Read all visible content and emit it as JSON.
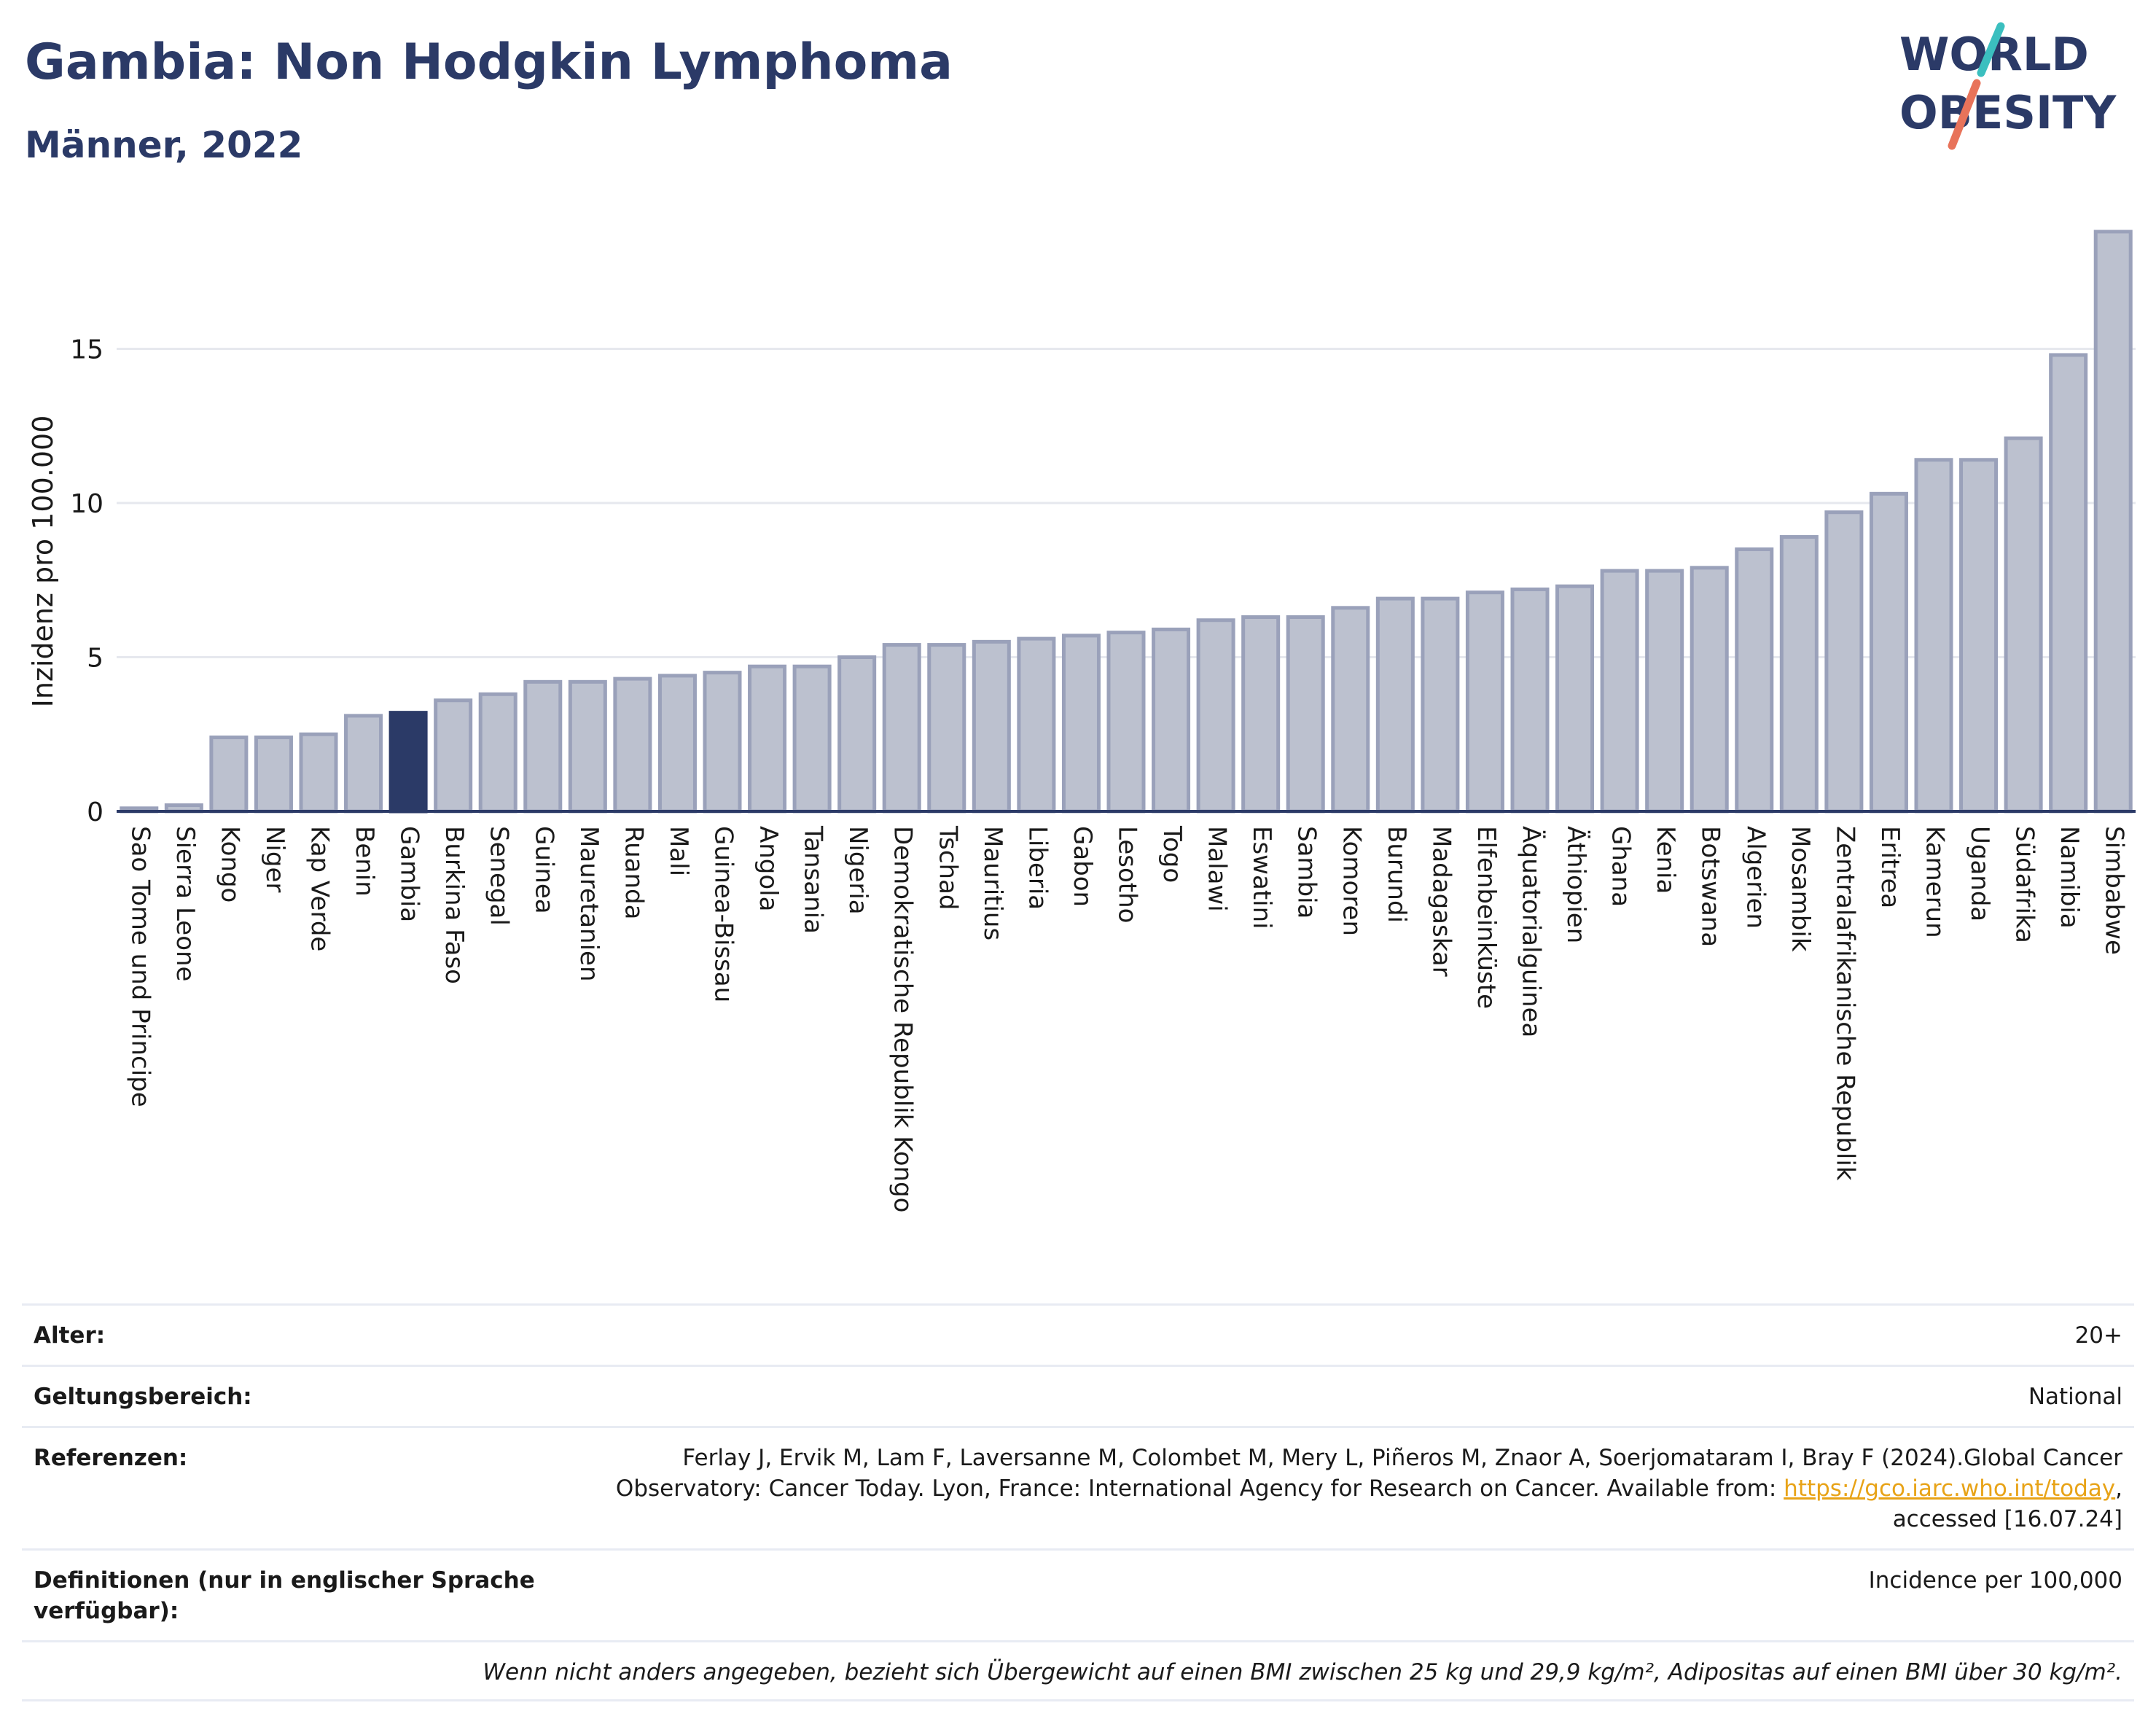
{
  "header": {
    "title": "Gambia: Non Hodgkin Lymphoma",
    "subtitle": "Männer, 2022"
  },
  "logo": {
    "line1": "WORLD",
    "line2": "OBESITY",
    "colors": {
      "text": "#2b3a67",
      "teal": "#3bbfbf",
      "coral": "#e8735a"
    }
  },
  "chart_data": {
    "type": "bar",
    "ylabel": "Inzidenz pro 100.000",
    "xlabel": "",
    "ylim": [
      0,
      19
    ],
    "yticks": [
      0,
      5,
      10,
      15
    ],
    "grid": true,
    "highlight": "Gambia",
    "colors": {
      "bar": "#bcc1cf",
      "bar_edge": "#9aa1ba",
      "highlight": "#2b3a67",
      "grid": "#e6e8ee",
      "axis": "#2b3a67"
    },
    "categories": [
      "Sao Tome und Principe",
      "Sierra Leone",
      "Kongo",
      "Niger",
      "Kap Verde",
      "Benin",
      "Gambia",
      "Burkina Faso",
      "Senegal",
      "Guinea",
      "Mauretanien",
      "Ruanda",
      "Mali",
      "Guinea-Bissau",
      "Angola",
      "Tansania",
      "Nigeria",
      "Demokratische Republik Kongo",
      "Tschad",
      "Mauritius",
      "Liberia",
      "Gabon",
      "Lesotho",
      "Togo",
      "Malawi",
      "Eswatini",
      "Sambia",
      "Komoren",
      "Burundi",
      "Madagaskar",
      "Elfenbeinküste",
      "Äquatorialguinea",
      "Äthiopien",
      "Ghana",
      "Kenia",
      "Botswana",
      "Algerien",
      "Mosambik",
      "Zentralafrikanische Republik",
      "Eritrea",
      "Kamerun",
      "Uganda",
      "Südafrika",
      "Namibia",
      "Simbabwe"
    ],
    "values": [
      0.1,
      0.2,
      2.4,
      2.4,
      2.5,
      3.1,
      3.2,
      3.6,
      3.8,
      4.2,
      4.2,
      4.3,
      4.4,
      4.5,
      4.7,
      4.7,
      5.0,
      5.4,
      5.4,
      5.5,
      5.6,
      5.7,
      5.8,
      5.9,
      6.2,
      6.3,
      6.3,
      6.6,
      6.9,
      6.9,
      7.1,
      7.2,
      7.3,
      7.8,
      7.8,
      7.9,
      8.5,
      8.9,
      9.7,
      10.3,
      11.4,
      11.4,
      12.1,
      14.8,
      18.8
    ]
  },
  "meta": {
    "rows": [
      {
        "label": "Alter:",
        "value": "20+"
      },
      {
        "label": "Geltungsbereich:",
        "value": "National"
      },
      {
        "label": "Referenzen:",
        "value_before": "Ferlay J, Ervik M, Lam F, Laversanne M, Colombet M, Mery L, Piñeros M, Znaor A, Soerjomataram I, Bray F (2024).Global Cancer Observatory: Cancer Today. Lyon, France: International Agency for Research on Cancer. Available from: ",
        "link": "https://gco.iarc.who.int/today",
        "value_after": ", accessed [16.07.24]"
      },
      {
        "label": "Definitionen (nur in englischer Sprache verfügbar):",
        "value": "Incidence per 100,000"
      }
    ],
    "footnote": "Wenn nicht anders angegeben, bezieht sich Übergewicht auf einen BMI zwischen 25 kg und 29,9 kg/m², Adipositas auf einen BMI über 30 kg/m²."
  }
}
